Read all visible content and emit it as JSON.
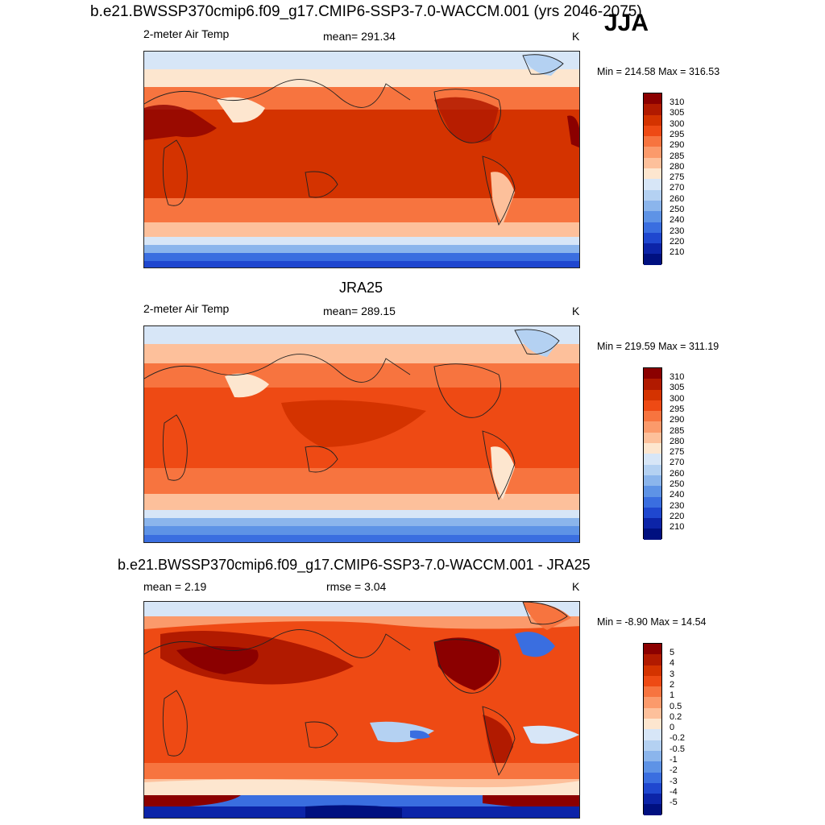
{
  "figure": {
    "title": "b.e21.BWSSP370cmip6.f09_g17.CMIP6-SSP3-7.0-WACCM.001 (yrs 2046-2075)",
    "season": "JJA"
  },
  "panels": [
    {
      "title": "",
      "left_label": "2-meter Air Temp",
      "center_label": "mean= 291.34",
      "right_label": "K",
      "minmax": "Min = 214.58 Max = 316.53",
      "colorbar": {
        "labels": [
          "310",
          "305",
          "300",
          "295",
          "290",
          "285",
          "280",
          "275",
          "270",
          "260",
          "250",
          "240",
          "230",
          "220",
          "210"
        ],
        "colors": [
          "#8b0000",
          "#b11a00",
          "#d43300",
          "#ee4a14",
          "#f7743f",
          "#fb9a6b",
          "#fdc09b",
          "#fde6cf",
          "#d7e6f7",
          "#b4d1f2",
          "#8bb5ec",
          "#5e93e6",
          "#3a6ee0",
          "#1f47cf",
          "#0c24a8",
          "#001080"
        ]
      }
    },
    {
      "title": "JRA25",
      "left_label": "2-meter Air Temp",
      "center_label": "mean= 289.15",
      "right_label": "K",
      "minmax": "Min = 219.59 Max = 311.19",
      "colorbar": {
        "labels": [
          "310",
          "305",
          "300",
          "295",
          "290",
          "285",
          "280",
          "275",
          "270",
          "260",
          "250",
          "240",
          "230",
          "220",
          "210"
        ],
        "colors": [
          "#8b0000",
          "#b11a00",
          "#d43300",
          "#ee4a14",
          "#f7743f",
          "#fb9a6b",
          "#fdc09b",
          "#fde6cf",
          "#d7e6f7",
          "#b4d1f2",
          "#8bb5ec",
          "#5e93e6",
          "#3a6ee0",
          "#1f47cf",
          "#0c24a8",
          "#001080"
        ]
      }
    },
    {
      "title": "b.e21.BWSSP370cmip6.f09_g17.CMIP6-SSP3-7.0-WACCM.001 - JRA25",
      "left_label": "mean =   2.19",
      "center_label": "rmse =   3.04",
      "right_label": "K",
      "minmax": "Min =  -8.90 Max =  14.54",
      "colorbar": {
        "labels": [
          "5",
          "4",
          "3",
          "2",
          "1",
          "0.5",
          "0.2",
          "0",
          "-0.2",
          "-0.5",
          "-1",
          "-2",
          "-3",
          "-4",
          "-5"
        ],
        "colors": [
          "#8b0000",
          "#b11a00",
          "#d43300",
          "#ee4a14",
          "#f7743f",
          "#fb9a6b",
          "#fdc09b",
          "#fde6cf",
          "#d7e6f7",
          "#b4d1f2",
          "#8bb5ec",
          "#5e93e6",
          "#3a6ee0",
          "#1f47cf",
          "#0c24a8",
          "#001080"
        ]
      }
    }
  ]
}
